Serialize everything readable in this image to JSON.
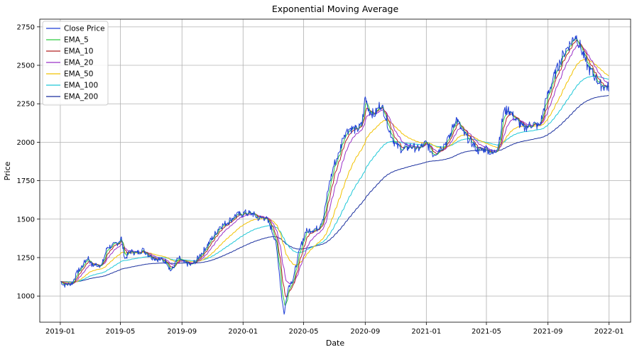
{
  "chart_data": {
    "type": "line",
    "title": "Exponential Moving Average",
    "xlabel": "Date",
    "ylabel": "Price",
    "x_ticks": [
      "2019-01",
      "2019-05",
      "2019-09",
      "2020-01",
      "2020-05",
      "2020-09",
      "2021-01",
      "2021-05",
      "2021-09",
      "2022-01"
    ],
    "y_ticks": [
      1000,
      1250,
      1500,
      1750,
      2000,
      2250,
      2500,
      2750
    ],
    "xlim": [
      "2018-11-21",
      "2022-02-13"
    ],
    "ylim": [
      830,
      2800
    ],
    "grid": true,
    "legend_position": "top-left",
    "series": [
      {
        "name": "Close Price",
        "color": "#1f3fd6",
        "width": 1.0
      },
      {
        "name": "EMA_5",
        "color": "#2ecc40",
        "width": 1.0
      },
      {
        "name": "EMA_10",
        "color": "#b22222",
        "width": 1.0
      },
      {
        "name": "EMA_20",
        "color": "#9b30c8",
        "width": 1.0
      },
      {
        "name": "EMA_50",
        "color": "#f2c200",
        "width": 1.0
      },
      {
        "name": "EMA_100",
        "color": "#1ec8d8",
        "width": 1.0
      },
      {
        "name": "EMA_200",
        "color": "#1a2f9e",
        "width": 1.0
      }
    ],
    "close_anchors": [
      [
        "2019-01-02",
        1095
      ],
      [
        "2019-01-10",
        1070
      ],
      [
        "2019-01-25",
        1085
      ],
      [
        "2019-02-05",
        1160
      ],
      [
        "2019-02-15",
        1200
      ],
      [
        "2019-02-25",
        1255
      ],
      [
        "2019-03-05",
        1200
      ],
      [
        "2019-03-15",
        1205
      ],
      [
        "2019-03-25",
        1200
      ],
      [
        "2019-04-05",
        1320
      ],
      [
        "2019-04-15",
        1325
      ],
      [
        "2019-04-25",
        1345
      ],
      [
        "2019-05-03",
        1375
      ],
      [
        "2019-05-10",
        1240
      ],
      [
        "2019-05-20",
        1290
      ],
      [
        "2019-06-03",
        1280
      ],
      [
        "2019-06-15",
        1300
      ],
      [
        "2019-07-01",
        1255
      ],
      [
        "2019-07-15",
        1240
      ],
      [
        "2019-08-01",
        1225
      ],
      [
        "2019-08-10",
        1160
      ],
      [
        "2019-08-25",
        1250
      ],
      [
        "2019-09-05",
        1215
      ],
      [
        "2019-09-20",
        1200
      ],
      [
        "2019-10-01",
        1240
      ],
      [
        "2019-10-15",
        1300
      ],
      [
        "2019-10-30",
        1370
      ],
      [
        "2019-11-15",
        1450
      ],
      [
        "2019-12-01",
        1480
      ],
      [
        "2019-12-15",
        1520
      ],
      [
        "2020-01-05",
        1540
      ],
      [
        "2020-01-20",
        1535
      ],
      [
        "2020-02-01",
        1505
      ],
      [
        "2020-02-15",
        1510
      ],
      [
        "2020-02-25",
        1450
      ],
      [
        "2020-03-05",
        1370
      ],
      [
        "2020-03-12",
        1200
      ],
      [
        "2020-03-18",
        1000
      ],
      [
        "2020-03-23",
        880
      ],
      [
        "2020-03-31",
        1060
      ],
      [
        "2020-04-10",
        1110
      ],
      [
        "2020-04-20",
        1260
      ],
      [
        "2020-04-28",
        1350
      ],
      [
        "2020-05-05",
        1420
      ],
      [
        "2020-05-15",
        1430
      ],
      [
        "2020-05-30",
        1440
      ],
      [
        "2020-06-10",
        1520
      ],
      [
        "2020-06-20",
        1710
      ],
      [
        "2020-07-01",
        1860
      ],
      [
        "2020-07-10",
        1920
      ],
      [
        "2020-07-20",
        2050
      ],
      [
        "2020-08-01",
        2090
      ],
      [
        "2020-08-15",
        2080
      ],
      [
        "2020-08-25",
        2110
      ],
      [
        "2020-09-01",
        2290
      ],
      [
        "2020-09-10",
        2200
      ],
      [
        "2020-09-20",
        2180
      ],
      [
        "2020-10-01",
        2250
      ],
      [
        "2020-10-10",
        2190
      ],
      [
        "2020-10-20",
        2070
      ],
      [
        "2020-11-01",
        1980
      ],
      [
        "2020-11-15",
        1950
      ],
      [
        "2020-12-01",
        1975
      ],
      [
        "2020-12-15",
        1955
      ],
      [
        "2021-01-01",
        1995
      ],
      [
        "2021-01-15",
        1920
      ],
      [
        "2021-02-01",
        1970
      ],
      [
        "2021-02-15",
        2020
      ],
      [
        "2021-03-01",
        2160
      ],
      [
        "2021-03-15",
        2060
      ],
      [
        "2021-04-01",
        2000
      ],
      [
        "2021-04-15",
        1945
      ],
      [
        "2021-05-01",
        1960
      ],
      [
        "2021-05-15",
        1920
      ],
      [
        "2021-05-25",
        1990
      ],
      [
        "2021-06-05",
        2200
      ],
      [
        "2021-06-15",
        2210
      ],
      [
        "2021-06-30",
        2140
      ],
      [
        "2021-07-15",
        2090
      ],
      [
        "2021-08-01",
        2120
      ],
      [
        "2021-08-15",
        2100
      ],
      [
        "2021-09-01",
        2320
      ],
      [
        "2021-09-15",
        2440
      ],
      [
        "2021-10-01",
        2570
      ],
      [
        "2021-10-15",
        2640
      ],
      [
        "2021-10-26",
        2700
      ],
      [
        "2021-11-05",
        2620
      ],
      [
        "2021-11-20",
        2480
      ],
      [
        "2021-12-01",
        2440
      ],
      [
        "2021-12-15",
        2370
      ],
      [
        "2021-12-23",
        2360
      ],
      [
        "2021-12-31",
        2360
      ]
    ],
    "ema_periods": [
      5,
      10,
      20,
      50,
      100,
      200
    ]
  }
}
